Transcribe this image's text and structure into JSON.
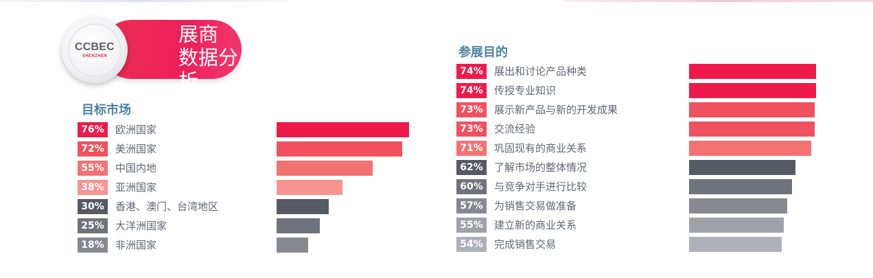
{
  "logo": {
    "brand": "CCBEC",
    "sub": "SHENZHEN",
    "title_line1": "展商",
    "title_line2": "数据分析"
  },
  "colors": {
    "p1": "#ee1a4a",
    "p2": "#f1505e",
    "p3": "#f47172",
    "p4": "#f69492",
    "g1": "#555a63",
    "g2": "#6f737c",
    "g3": "#868990",
    "g4": "#9ea1a8",
    "g5": "#aeb1b7",
    "title": "#4d83a0"
  },
  "chart_data": [
    {
      "type": "bar",
      "title": "目标市场",
      "categories": [
        "欧洲国家",
        "美洲国家",
        "中国内地",
        "亚洲国家",
        "香港、澳门、台湾地区",
        "大洋洲国家",
        "非洲国家"
      ],
      "values": [
        76,
        72,
        55,
        38,
        30,
        25,
        18
      ],
      "labels": [
        "76%",
        "72%",
        "55%",
        "38%",
        "30%",
        "25%",
        "18%"
      ],
      "colors": [
        "p1",
        "p2",
        "p3",
        "p4",
        "g1",
        "g2",
        "g3"
      ]
    },
    {
      "type": "bar",
      "title": "参展目的",
      "categories": [
        "展出和讨论产品种类",
        "传授专业知识",
        "展示新产品与新的开发成果",
        "交流经验",
        "巩固现有的商业关系",
        "了解市场的整体情况",
        "与竞争对手进行比较",
        "为销售交易做准备",
        "建立新的商业关系",
        "完成销售交易"
      ],
      "values": [
        74,
        74,
        73,
        73,
        71,
        62,
        60,
        57,
        55,
        54
      ],
      "labels": [
        "74%",
        "74%",
        "73%",
        "73%",
        "71%",
        "62%",
        "60%",
        "57%",
        "55%",
        "54%"
      ],
      "colors": [
        "p1",
        "p1",
        "p2",
        "p2",
        "p3",
        "g1",
        "g2",
        "g3",
        "g4",
        "g5"
      ]
    }
  ]
}
